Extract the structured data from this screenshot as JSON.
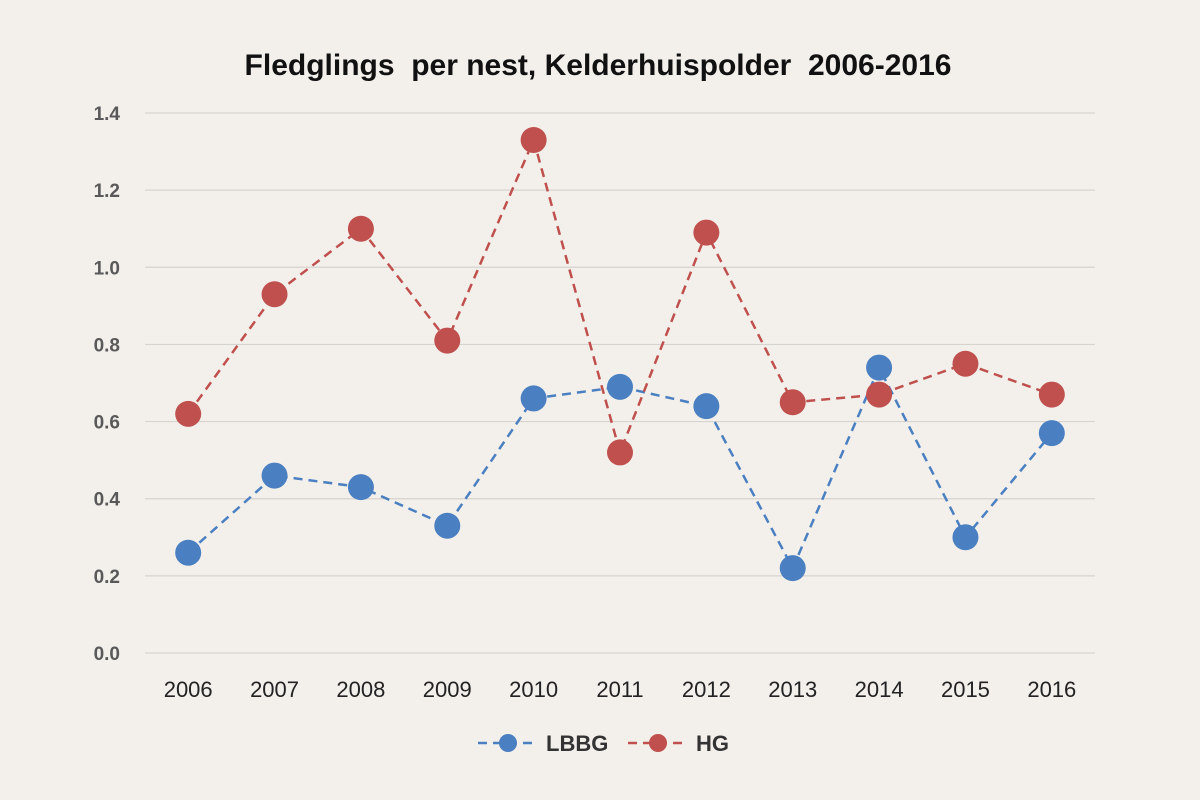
{
  "chart_data": {
    "type": "line",
    "title": "Fledglings  per nest, Kelderhuispolder  2006-2016",
    "xlabel": "",
    "ylabel": "",
    "categories": [
      "2006",
      "2007",
      "2008",
      "2009",
      "2010",
      "2011",
      "2012",
      "2013",
      "2014",
      "2015",
      "2016"
    ],
    "y_ticks": [
      "0.0",
      "0.2",
      "0.4",
      "0.6",
      "0.8",
      "1.0",
      "1.2",
      "1.4"
    ],
    "ylim": [
      0,
      1.4
    ],
    "grid": true,
    "legend_position": "bottom",
    "series": [
      {
        "name": "LBBG",
        "color": "#4a7fc1",
        "values": [
          0.26,
          0.46,
          0.43,
          0.33,
          0.66,
          0.69,
          0.64,
          0.22,
          0.74,
          0.3,
          0.57
        ]
      },
      {
        "name": "HG",
        "color": "#c0504d",
        "values": [
          0.62,
          0.93,
          1.1,
          0.81,
          1.33,
          0.52,
          1.09,
          0.65,
          0.67,
          0.75,
          0.67
        ]
      }
    ]
  }
}
